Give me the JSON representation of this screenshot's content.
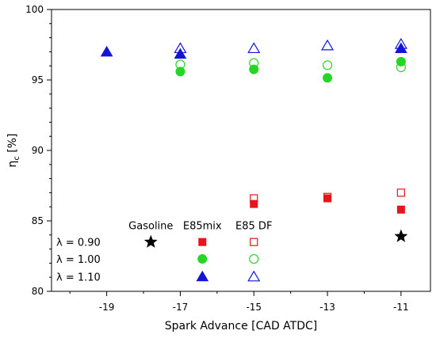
{
  "chart_data": {
    "type": "scatter",
    "title": "",
    "xlabel": "Spark Advance [CAD ATDC]",
    "ylabel_main": "η",
    "ylabel_sub": "c",
    "ylabel_unit": " [%]",
    "xlim": [
      -20.5,
      -10.2
    ],
    "ylim": [
      80,
      100
    ],
    "xticks": [
      -19,
      -17,
      -15,
      -13,
      -11
    ],
    "yticks": [
      80,
      85,
      90,
      95,
      100
    ],
    "grid": false,
    "legend": {
      "placement": "bottom-left",
      "columns": [
        "Gasoline",
        "E85mix",
        "E85 DF"
      ],
      "rows": [
        "λ = 0.90",
        "λ = 1.00",
        "λ = 1.10"
      ]
    },
    "series": [
      {
        "name": "E85mix λ = 0.90",
        "fuel": "E85mix",
        "lambda_index": 0,
        "marker": "square",
        "filled": true,
        "color": "#e8141c",
        "points": [
          [
            -15,
            86.2
          ],
          [
            -13,
            86.6
          ],
          [
            -11,
            85.8
          ]
        ]
      },
      {
        "name": "E85 DF λ = 0.90",
        "fuel": "E85 DF",
        "lambda_index": 0,
        "marker": "square",
        "filled": false,
        "color": "#e8141c",
        "points": [
          [
            -15,
            86.6
          ],
          [
            -13,
            86.7
          ],
          [
            -11,
            87.0
          ]
        ]
      },
      {
        "name": "E85mix λ = 1.00",
        "fuel": "E85mix",
        "lambda_index": 1,
        "marker": "circle",
        "filled": true,
        "color": "#25d625",
        "points": [
          [
            -17,
            95.6
          ],
          [
            -15,
            95.75
          ],
          [
            -13,
            95.15
          ],
          [
            -11,
            96.3
          ]
        ]
      },
      {
        "name": "E85 DF λ = 1.00",
        "fuel": "E85 DF",
        "lambda_index": 1,
        "marker": "circle",
        "filled": false,
        "color": "#25d625",
        "points": [
          [
            -17,
            96.1
          ],
          [
            -15,
            96.2
          ],
          [
            -13,
            96.05
          ],
          [
            -11,
            95.9
          ]
        ]
      },
      {
        "name": "E85mix λ = 1.10",
        "fuel": "E85mix",
        "lambda_index": 2,
        "marker": "triangle",
        "filled": true,
        "color": "#1414d8",
        "points": [
          [
            -19,
            97.0
          ],
          [
            -17,
            96.85
          ],
          [
            -11,
            97.25
          ]
        ]
      },
      {
        "name": "E85 DF λ = 1.10",
        "fuel": "E85 DF",
        "lambda_index": 2,
        "marker": "triangle",
        "filled": false,
        "color": "#1414d8",
        "points": [
          [
            -17,
            97.25
          ],
          [
            -15,
            97.25
          ],
          [
            -13,
            97.45
          ],
          [
            -11,
            97.55
          ]
        ]
      },
      {
        "name": "Gasoline λ = 0.90",
        "fuel": "Gasoline",
        "lambda_index": 0,
        "marker": "star",
        "filled": true,
        "color": "#000000",
        "points": [
          [
            -11,
            83.9
          ]
        ]
      }
    ]
  }
}
